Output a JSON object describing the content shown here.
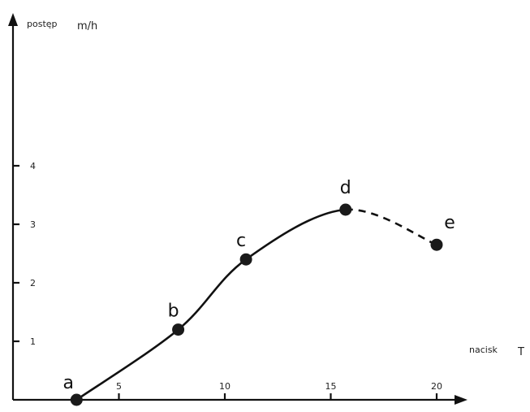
{
  "chart_data": {
    "type": "line",
    "ylabel": "postęp",
    "yunit": "m/h",
    "xlabel": "nacisk",
    "xunit": "T",
    "x_ticks": [
      5,
      10,
      15,
      20
    ],
    "y_ticks": [
      1,
      2,
      3,
      4
    ],
    "xlim": [
      0,
      21
    ],
    "ylim": [
      0,
      6
    ],
    "grid": false,
    "points": [
      {
        "label": "a",
        "x": 3,
        "y": 0
      },
      {
        "label": "b",
        "x": 7.8,
        "y": 1.2
      },
      {
        "label": "c",
        "x": 11,
        "y": 2.4
      },
      {
        "label": "d",
        "x": 15.7,
        "y": 3.25
      },
      {
        "label": "e",
        "x": 20,
        "y": 2.65
      }
    ],
    "solid_segment": [
      "a",
      "b",
      "c",
      "d"
    ],
    "dashed_segment": [
      "d",
      "e"
    ]
  }
}
